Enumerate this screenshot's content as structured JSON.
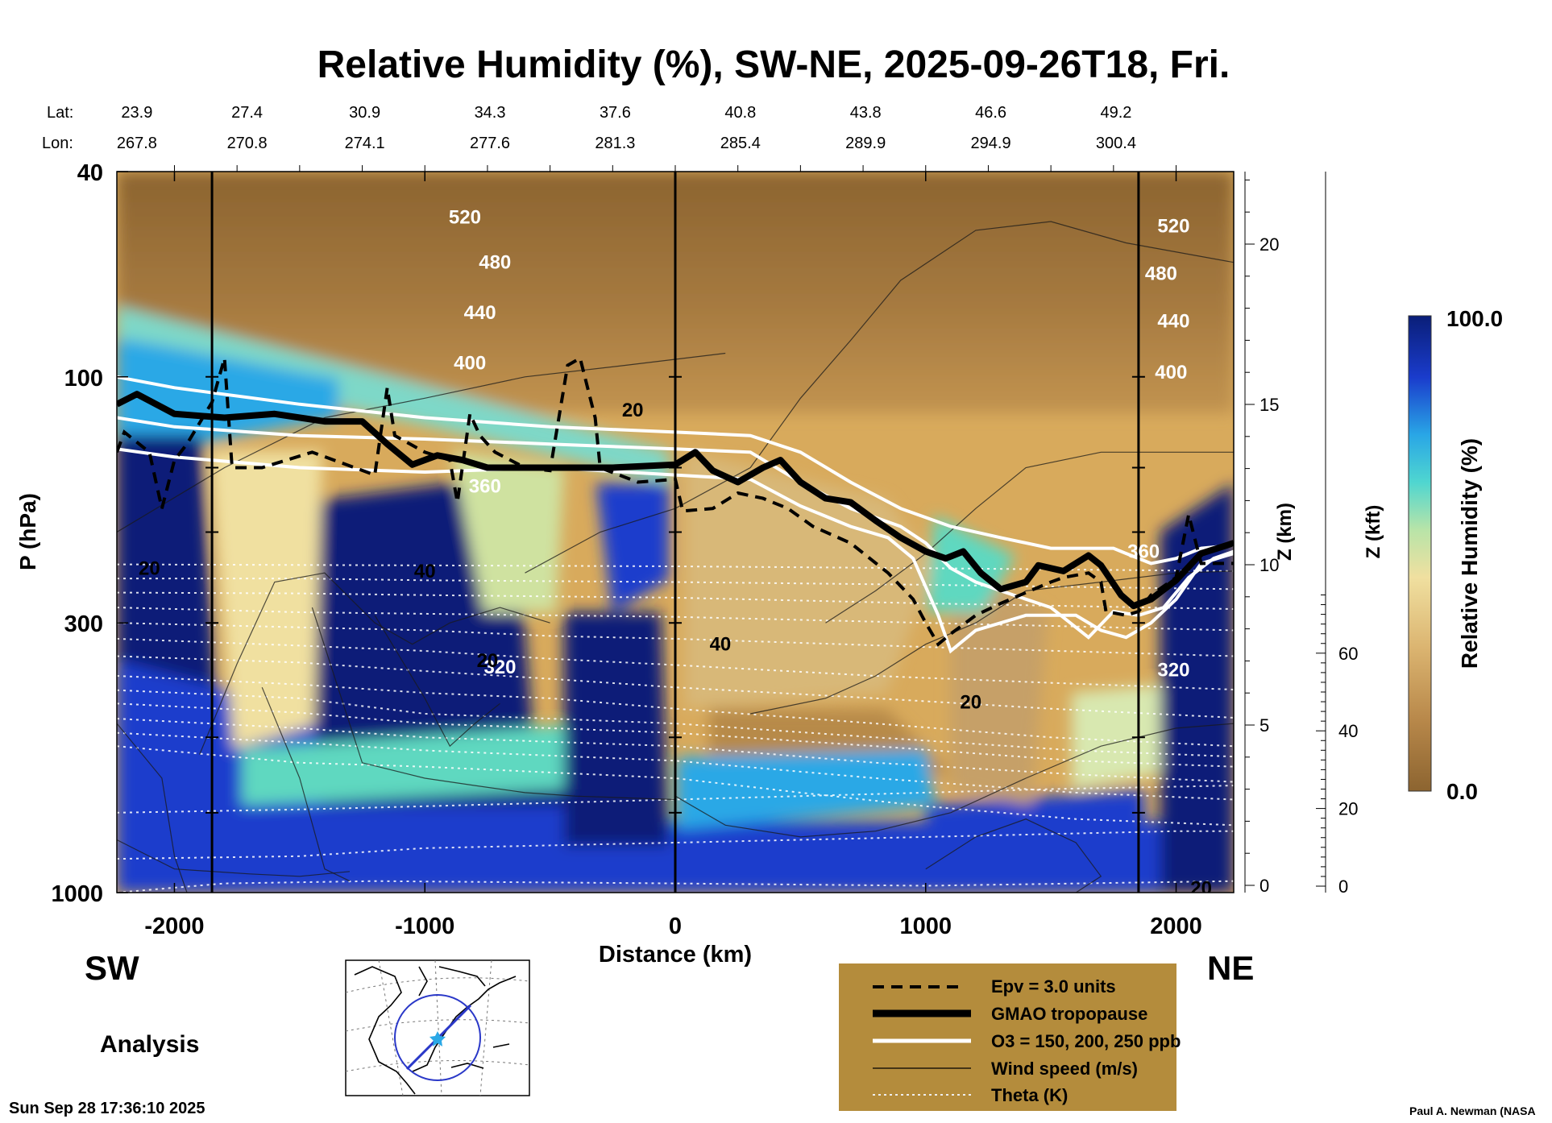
{
  "chart_data": {
    "type": "heatmap",
    "title": "Relative Humidity (%), SW-NE, 2025-09-26T18, Fri.",
    "xlabel": "Distance (km)",
    "ylabel": "P (hPa)",
    "right_axis_1_label": "Z (km)",
    "right_axis_2_label": "Z (kft)",
    "colorbar_label": "Relative Humidity (%)",
    "colorbar_max_label": "100.0",
    "colorbar_min_label": "0.0",
    "xlim": [
      -2230,
      2230
    ],
    "ylim_hPa": [
      1000,
      40
    ],
    "x_ticks": [
      -2000,
      -1000,
      0,
      1000,
      2000
    ],
    "x_tick_labels": [
      "-2000",
      "-1000",
      "0",
      "1000",
      "2000"
    ],
    "y_ticks": [
      1000,
      300,
      100,
      40
    ],
    "y_tick_labels": [
      "1000",
      "300",
      "100",
      "40"
    ],
    "z_km_ticks": [
      0,
      5,
      10,
      15,
      20
    ],
    "z_km_tick_labels": [
      "0",
      "5",
      "10",
      "15",
      "20"
    ],
    "z_kft_ticks": [
      0,
      20,
      40,
      60
    ],
    "z_kft_tick_labels": [
      "0",
      "20",
      "40",
      "60"
    ],
    "lat_label": "Lat:",
    "lon_label": "Lon:",
    "lat_values": [
      "23.9",
      "27.4",
      "30.9",
      "34.3",
      "37.6",
      "40.8",
      "43.8",
      "46.6",
      "49.2"
    ],
    "lon_values": [
      "267.8",
      "270.8",
      "274.1",
      "277.6",
      "281.3",
      "285.4",
      "289.9",
      "294.9",
      "300.4"
    ],
    "coord_distances_km": [
      -2150,
      -1710,
      -1240,
      -740,
      -240,
      260,
      760,
      1260,
      1760
    ],
    "vertical_lines_km": [
      -1850,
      0,
      1850
    ],
    "theta_levels_K": [
      320,
      360,
      400,
      440,
      480,
      520
    ],
    "theta_label_texts": [
      "520",
      "480",
      "440",
      "400",
      "360",
      "320",
      "520",
      "480",
      "440",
      "400",
      "360",
      "320"
    ],
    "wind_label_texts": [
      "20",
      "40",
      "20",
      "40",
      "20",
      "20",
      "20"
    ],
    "tropopause_hPa": [
      [
        -2230,
        113
      ],
      [
        -2150,
        108
      ],
      [
        -2000,
        118
      ],
      [
        -1800,
        120
      ],
      [
        -1600,
        118
      ],
      [
        -1400,
        122
      ],
      [
        -1250,
        122
      ],
      [
        -1150,
        135
      ],
      [
        -1050,
        148
      ],
      [
        -950,
        142
      ],
      [
        -850,
        145
      ],
      [
        -750,
        150
      ],
      [
        -500,
        150
      ],
      [
        -250,
        150
      ],
      [
        0,
        148
      ],
      [
        80,
        140
      ],
      [
        150,
        152
      ],
      [
        250,
        160
      ],
      [
        350,
        150
      ],
      [
        420,
        145
      ],
      [
        500,
        160
      ],
      [
        600,
        172
      ],
      [
        700,
        175
      ],
      [
        800,
        190
      ],
      [
        900,
        205
      ],
      [
        1000,
        218
      ],
      [
        1080,
        225
      ],
      [
        1150,
        218
      ],
      [
        1220,
        240
      ],
      [
        1300,
        258
      ],
      [
        1400,
        250
      ],
      [
        1450,
        232
      ],
      [
        1550,
        238
      ],
      [
        1650,
        222
      ],
      [
        1700,
        232
      ],
      [
        1780,
        265
      ],
      [
        1830,
        278
      ],
      [
        1900,
        270
      ],
      [
        2000,
        248
      ],
      [
        2100,
        220
      ],
      [
        2230,
        210
      ]
    ],
    "epv_hPa": [
      [
        -2230,
        140
      ],
      [
        -2200,
        128
      ],
      [
        -2100,
        140
      ],
      [
        -2050,
        180
      ],
      [
        -2000,
        145
      ],
      [
        -1950,
        135
      ],
      [
        -1850,
        112
      ],
      [
        -1800,
        92
      ],
      [
        -1770,
        150
      ],
      [
        -1650,
        150
      ],
      [
        -1450,
        140
      ],
      [
        -1200,
        155
      ],
      [
        -1150,
        105
      ],
      [
        -1120,
        130
      ],
      [
        -1000,
        140
      ],
      [
        -900,
        145
      ],
      [
        -870,
        175
      ],
      [
        -820,
        118
      ],
      [
        -780,
        130
      ],
      [
        -720,
        140
      ],
      [
        -600,
        150
      ],
      [
        -500,
        152
      ],
      [
        -430,
        95
      ],
      [
        -380,
        92
      ],
      [
        -320,
        120
      ],
      [
        -300,
        150
      ],
      [
        -150,
        160
      ],
      [
        0,
        158
      ],
      [
        30,
        182
      ],
      [
        150,
        180
      ],
      [
        250,
        168
      ],
      [
        350,
        172
      ],
      [
        450,
        180
      ],
      [
        550,
        195
      ],
      [
        700,
        210
      ],
      [
        850,
        240
      ],
      [
        950,
        270
      ],
      [
        1000,
        300
      ],
      [
        1050,
        330
      ],
      [
        1100,
        315
      ],
      [
        1200,
        290
      ],
      [
        1300,
        275
      ],
      [
        1400,
        262
      ],
      [
        1500,
        250
      ],
      [
        1550,
        245
      ],
      [
        1650,
        240
      ],
      [
        1700,
        250
      ],
      [
        1720,
        285
      ],
      [
        1800,
        290
      ],
      [
        1850,
        285
      ],
      [
        1900,
        265
      ],
      [
        2000,
        245
      ],
      [
        2050,
        185
      ],
      [
        2100,
        230
      ],
      [
        2230,
        230
      ]
    ],
    "ozone_hPa": {
      "upper": [
        [
          -2230,
          100
        ],
        [
          -2000,
          105
        ],
        [
          -1500,
          113
        ],
        [
          -1000,
          120
        ],
        [
          -500,
          125
        ],
        [
          0,
          128
        ],
        [
          300,
          130
        ],
        [
          500,
          140
        ],
        [
          700,
          160
        ],
        [
          900,
          180
        ],
        [
          1100,
          195
        ],
        [
          1300,
          205
        ],
        [
          1500,
          215
        ],
        [
          1650,
          215
        ],
        [
          1750,
          215
        ],
        [
          1800,
          220
        ],
        [
          1900,
          230
        ],
        [
          2000,
          225
        ],
        [
          2100,
          215
        ],
        [
          2230,
          212
        ]
      ],
      "mid": [
        [
          -2230,
          120
        ],
        [
          -2000,
          125
        ],
        [
          -1500,
          130
        ],
        [
          -1000,
          132
        ],
        [
          -500,
          135
        ],
        [
          0,
          138
        ],
        [
          300,
          140
        ],
        [
          500,
          160
        ],
        [
          700,
          180
        ],
        [
          900,
          195
        ],
        [
          1000,
          210
        ],
        [
          1100,
          235
        ],
        [
          1200,
          250
        ],
        [
          1300,
          260
        ],
        [
          1500,
          280
        ],
        [
          1650,
          320
        ],
        [
          1750,
          285
        ],
        [
          1850,
          290
        ],
        [
          1950,
          280
        ],
        [
          2050,
          245
        ],
        [
          2150,
          225
        ],
        [
          2230,
          218
        ]
      ],
      "lower": [
        [
          -2230,
          138
        ],
        [
          -2000,
          143
        ],
        [
          -1500,
          150
        ],
        [
          -1000,
          153
        ],
        [
          -500,
          150
        ],
        [
          0,
          155
        ],
        [
          300,
          158
        ],
        [
          500,
          178
        ],
        [
          700,
          195
        ],
        [
          850,
          205
        ],
        [
          950,
          225
        ],
        [
          1050,
          290
        ],
        [
          1100,
          340
        ],
        [
          1200,
          310
        ],
        [
          1400,
          290
        ],
        [
          1600,
          290
        ],
        [
          1700,
          310
        ],
        [
          1800,
          320
        ],
        [
          1900,
          300
        ],
        [
          2000,
          270
        ],
        [
          2100,
          230
        ],
        [
          2230,
          220
        ]
      ]
    },
    "legend": [
      {
        "style": "dashed",
        "label": "Epv = 3.0 units"
      },
      {
        "style": "thick-black",
        "label": "GMAO tropopause"
      },
      {
        "style": "white",
        "label": "O3 = 150, 200, 250 ppb"
      },
      {
        "style": "thin-black",
        "label": "Wind speed (m/s)"
      },
      {
        "style": "dotted",
        "label": "Theta (K)"
      }
    ],
    "annotations": {
      "sw": "SW",
      "ne": "NE",
      "analysis": "Analysis",
      "timestamp": "Sun Sep 28 17:36:10 2025",
      "credit": "Paul A. Newman (NASA"
    },
    "colors": {
      "moist_dark": "#0a1e78",
      "moist_blue": "#1a3ccc",
      "cyan": "#3cc8e6",
      "aqua": "#5ed8c0",
      "light": "#cfe2a0",
      "pale": "#e9d690",
      "tan": "#d0a050",
      "brown": "#8c6430",
      "legend_bg": "#b48c3c",
      "map_circle": "#2a38c8",
      "map_marker": "#2aa8e6"
    }
  }
}
